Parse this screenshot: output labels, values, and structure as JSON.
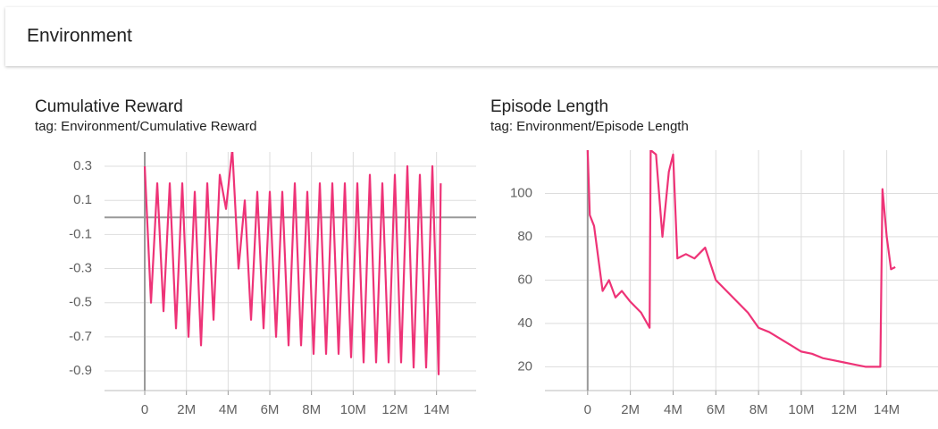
{
  "header": {
    "title": "Environment"
  },
  "chart_data": [
    {
      "type": "line",
      "title": "Cumulative Reward",
      "subtitle": "tag: Environment/Cumulative Reward",
      "x": [
        0,
        300000,
        600000,
        900000,
        1200000,
        1500000,
        1800000,
        2100000,
        2400000,
        2700000,
        3000000,
        3300000,
        3600000,
        3900000,
        4200000,
        4500000,
        4800000,
        5100000,
        5400000,
        5700000,
        6000000,
        6300000,
        6600000,
        6900000,
        7200000,
        7500000,
        7800000,
        8100000,
        8400000,
        8700000,
        9000000,
        9300000,
        9600000,
        9900000,
        10200000,
        10500000,
        10800000,
        11100000,
        11400000,
        11700000,
        12000000,
        12300000,
        12600000,
        12900000,
        13200000,
        13500000,
        13800000,
        14100000,
        14200000
      ],
      "series": [
        {
          "name": "Cumulative Reward",
          "color": "#ee3377",
          "values": [
            0.3,
            -0.5,
            0.2,
            -0.55,
            0.2,
            -0.65,
            0.2,
            -0.7,
            0.15,
            -0.75,
            0.2,
            -0.6,
            0.25,
            0.05,
            0.4,
            -0.3,
            0.1,
            -0.6,
            0.15,
            -0.65,
            0.15,
            -0.7,
            0.15,
            -0.75,
            0.2,
            -0.75,
            0.15,
            -0.8,
            0.2,
            -0.8,
            0.2,
            -0.8,
            0.2,
            -0.82,
            0.2,
            -0.85,
            0.25,
            -0.85,
            0.2,
            -0.85,
            0.25,
            -0.85,
            0.3,
            -0.88,
            0.25,
            -0.88,
            0.3,
            -0.92,
            0.2
          ]
        }
      ],
      "xlim": [
        -1930000,
        15900000
      ],
      "xticks": [
        {
          "value": 0,
          "label": "0"
        },
        {
          "value": 2000000,
          "label": "2M"
        },
        {
          "value": 4000000,
          "label": "4M"
        },
        {
          "value": 6000000,
          "label": "6M"
        },
        {
          "value": 8000000,
          "label": "8M"
        },
        {
          "value": 10000000,
          "label": "10M"
        },
        {
          "value": 12000000,
          "label": "12M"
        },
        {
          "value": 14000000,
          "label": "14M"
        }
      ],
      "ylim": [
        -1.015,
        0.384
      ],
      "yticks": [
        0.3,
        0.1,
        -0.1,
        -0.3,
        -0.5,
        -0.7,
        -0.9
      ],
      "grid": true
    },
    {
      "type": "line",
      "title": "Episode Length",
      "subtitle": "tag: Environment/Episode Length",
      "x": [
        0,
        100000,
        300000,
        500000,
        700000,
        1000000,
        1300000,
        1600000,
        2000000,
        2500000,
        2900000,
        2950000,
        3200000,
        3500000,
        3800000,
        4000000,
        4200000,
        4600000,
        5000000,
        5500000,
        6000000,
        6500000,
        7000000,
        7500000,
        8000000,
        8500000,
        9000000,
        9500000,
        10000000,
        10500000,
        11000000,
        11500000,
        12000000,
        12500000,
        13000000,
        13400000,
        13700000,
        13800000,
        14000000,
        14200000,
        14400000
      ],
      "series": [
        {
          "name": "Episode Length",
          "color": "#ee3377",
          "values": [
            120,
            90,
            85,
            70,
            55,
            60,
            52,
            55,
            50,
            45,
            38,
            120,
            118,
            80,
            110,
            118,
            70,
            72,
            70,
            75,
            60,
            55,
            50,
            45,
            38,
            36,
            33,
            30,
            27,
            26,
            24,
            23,
            22,
            21,
            20,
            20,
            20,
            102,
            80,
            65,
            66
          ]
        }
      ],
      "xlim": [
        -2000000,
        16400000
      ],
      "xticks": [
        {
          "value": 0,
          "label": "0"
        },
        {
          "value": 2000000,
          "label": "2M"
        },
        {
          "value": 4000000,
          "label": "4M"
        },
        {
          "value": 6000000,
          "label": "6M"
        },
        {
          "value": 8000000,
          "label": "8M"
        },
        {
          "value": 10000000,
          "label": "10M"
        },
        {
          "value": 12000000,
          "label": "12M"
        },
        {
          "value": 14000000,
          "label": "14M"
        }
      ],
      "ylim": [
        9,
        120
      ],
      "yticks": [
        100,
        80,
        60,
        40,
        20
      ],
      "grid": true
    }
  ]
}
